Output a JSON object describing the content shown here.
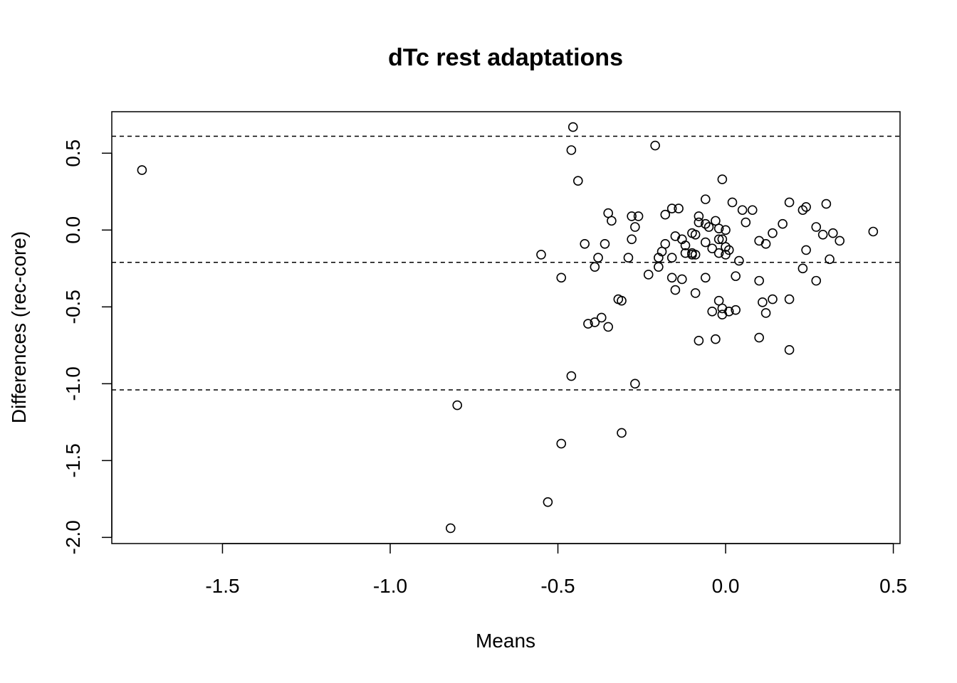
{
  "chart_data": {
    "type": "scatter",
    "title": "dTc rest adaptations",
    "xlabel": "Means",
    "ylabel": "Differences (rec-core)",
    "xlim": [
      -1.83,
      0.52
    ],
    "ylim": [
      -2.04,
      0.77
    ],
    "x_ticks": [
      -1.5,
      -1.0,
      -0.5,
      0.0,
      0.5
    ],
    "x_tick_labels": [
      "-1.5",
      "-1.0",
      "-0.5",
      "0.0",
      "0.5"
    ],
    "y_ticks": [
      -2.0,
      -1.5,
      -1.0,
      -0.5,
      0.0,
      0.5
    ],
    "y_tick_labels": [
      "-2.0",
      "-1.5",
      "-1.0",
      "-0.5",
      "0.0",
      "0.5"
    ],
    "reference_lines": [
      {
        "name": "upper limit of agreement",
        "y": 0.61,
        "style": "dashed"
      },
      {
        "name": "mean difference",
        "y": -0.21,
        "style": "dashed"
      },
      {
        "name": "lower limit of agreement",
        "y": -1.04,
        "style": "dashed"
      }
    ],
    "marker": "open-circle",
    "grid": false,
    "points": [
      {
        "x": -1.74,
        "y": 0.39
      },
      {
        "x": -0.455,
        "y": 0.67
      },
      {
        "x": -0.46,
        "y": 0.52
      },
      {
        "x": -0.44,
        "y": 0.32
      },
      {
        "x": -0.21,
        "y": 0.55
      },
      {
        "x": -0.55,
        "y": -0.16
      },
      {
        "x": -0.49,
        "y": -0.31
      },
      {
        "x": -0.42,
        "y": -0.09
      },
      {
        "x": -0.35,
        "y": 0.11
      },
      {
        "x": -0.34,
        "y": 0.06
      },
      {
        "x": -0.36,
        "y": -0.09
      },
      {
        "x": -0.38,
        "y": -0.18
      },
      {
        "x": -0.39,
        "y": -0.24
      },
      {
        "x": -0.41,
        "y": -0.61
      },
      {
        "x": -0.39,
        "y": -0.6
      },
      {
        "x": -0.37,
        "y": -0.57
      },
      {
        "x": -0.35,
        "y": -0.63
      },
      {
        "x": -0.32,
        "y": -0.45
      },
      {
        "x": -0.31,
        "y": -0.46
      },
      {
        "x": -0.28,
        "y": 0.09
      },
      {
        "x": -0.27,
        "y": 0.02
      },
      {
        "x": -0.26,
        "y": 0.09
      },
      {
        "x": -0.28,
        "y": -0.06
      },
      {
        "x": -0.29,
        "y": -0.18
      },
      {
        "x": -0.46,
        "y": -0.95
      },
      {
        "x": -0.27,
        "y": -1.0
      },
      {
        "x": -0.8,
        "y": -1.14
      },
      {
        "x": -0.49,
        "y": -1.39
      },
      {
        "x": -0.31,
        "y": -1.32
      },
      {
        "x": -0.53,
        "y": -1.77
      },
      {
        "x": -0.82,
        "y": -1.94
      },
      {
        "x": -0.23,
        "y": -0.29
      },
      {
        "x": -0.2,
        "y": -0.24
      },
      {
        "x": -0.2,
        "y": -0.18
      },
      {
        "x": -0.19,
        "y": -0.14
      },
      {
        "x": -0.18,
        "y": -0.09
      },
      {
        "x": -0.18,
        "y": 0.1
      },
      {
        "x": -0.16,
        "y": 0.14
      },
      {
        "x": -0.14,
        "y": 0.14
      },
      {
        "x": -0.15,
        "y": -0.04
      },
      {
        "x": -0.16,
        "y": -0.18
      },
      {
        "x": -0.16,
        "y": -0.31
      },
      {
        "x": -0.15,
        "y": -0.39
      },
      {
        "x": -0.13,
        "y": -0.32
      },
      {
        "x": -0.13,
        "y": -0.06
      },
      {
        "x": -0.12,
        "y": -0.1
      },
      {
        "x": -0.12,
        "y": -0.15
      },
      {
        "x": -0.1,
        "y": -0.02
      },
      {
        "x": -0.09,
        "y": -0.03
      },
      {
        "x": -0.1,
        "y": -0.16
      },
      {
        "x": -0.09,
        "y": -0.16
      },
      {
        "x": -0.1,
        "y": -0.15
      },
      {
        "x": -0.08,
        "y": 0.09
      },
      {
        "x": -0.08,
        "y": 0.05
      },
      {
        "x": -0.06,
        "y": 0.04
      },
      {
        "x": -0.05,
        "y": 0.02
      },
      {
        "x": -0.06,
        "y": 0.2
      },
      {
        "x": -0.06,
        "y": -0.08
      },
      {
        "x": -0.04,
        "y": -0.12
      },
      {
        "x": -0.06,
        "y": -0.31
      },
      {
        "x": -0.09,
        "y": -0.41
      },
      {
        "x": -0.08,
        "y": -0.72
      },
      {
        "x": -0.03,
        "y": -0.71
      },
      {
        "x": -0.04,
        "y": -0.53
      },
      {
        "x": -0.02,
        "y": -0.46
      },
      {
        "x": -0.01,
        "y": -0.51
      },
      {
        "x": -0.01,
        "y": -0.55
      },
      {
        "x": 0.01,
        "y": -0.53
      },
      {
        "x": 0.03,
        "y": -0.52
      },
      {
        "x": -0.03,
        "y": 0.06
      },
      {
        "x": -0.02,
        "y": 0.01
      },
      {
        "x": 0.0,
        "y": 0.0
      },
      {
        "x": -0.02,
        "y": -0.06
      },
      {
        "x": -0.01,
        "y": -0.06
      },
      {
        "x": -0.02,
        "y": -0.15
      },
      {
        "x": 0.0,
        "y": -0.16
      },
      {
        "x": 0.0,
        "y": -0.11
      },
      {
        "x": 0.01,
        "y": -0.13
      },
      {
        "x": -0.01,
        "y": 0.33
      },
      {
        "x": 0.02,
        "y": 0.18
      },
      {
        "x": 0.05,
        "y": 0.13
      },
      {
        "x": 0.06,
        "y": 0.05
      },
      {
        "x": 0.08,
        "y": 0.13
      },
      {
        "x": 0.03,
        "y": -0.3
      },
      {
        "x": 0.04,
        "y": -0.2
      },
      {
        "x": 0.1,
        "y": -0.07
      },
      {
        "x": 0.12,
        "y": -0.09
      },
      {
        "x": 0.14,
        "y": -0.02
      },
      {
        "x": 0.1,
        "y": -0.33
      },
      {
        "x": 0.11,
        "y": -0.47
      },
      {
        "x": 0.12,
        "y": -0.54
      },
      {
        "x": 0.14,
        "y": -0.45
      },
      {
        "x": 0.1,
        "y": -0.7
      },
      {
        "x": 0.19,
        "y": -0.45
      },
      {
        "x": 0.19,
        "y": -0.78
      },
      {
        "x": 0.17,
        "y": 0.04
      },
      {
        "x": 0.19,
        "y": 0.18
      },
      {
        "x": 0.23,
        "y": 0.13
      },
      {
        "x": 0.24,
        "y": 0.15
      },
      {
        "x": 0.24,
        "y": -0.13
      },
      {
        "x": 0.23,
        "y": -0.25
      },
      {
        "x": 0.27,
        "y": 0.02
      },
      {
        "x": 0.29,
        "y": -0.03
      },
      {
        "x": 0.3,
        "y": 0.17
      },
      {
        "x": 0.32,
        "y": -0.02
      },
      {
        "x": 0.34,
        "y": -0.07
      },
      {
        "x": 0.31,
        "y": -0.19
      },
      {
        "x": 0.27,
        "y": -0.33
      },
      {
        "x": 0.44,
        "y": -0.01
      }
    ]
  }
}
